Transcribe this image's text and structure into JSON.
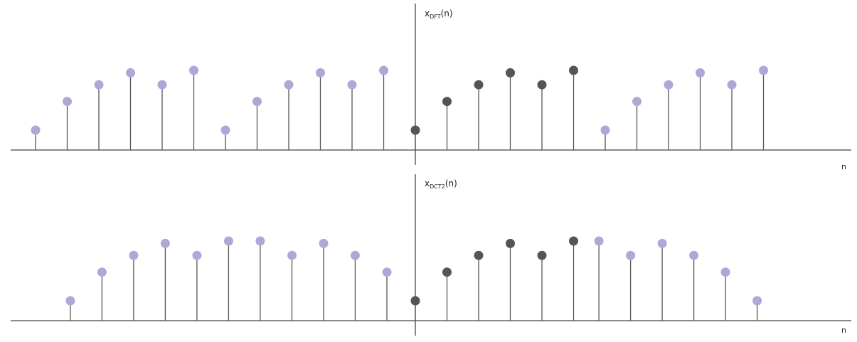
{
  "colors": {
    "axis": "#444444",
    "stem": "#555555",
    "periodic_marker": "#b3a6d6",
    "original_marker": "#555555",
    "text": "#222222"
  },
  "chart_data": [
    {
      "type": "stem",
      "ylabel": {
        "base": "x",
        "subscript": "DFT",
        "suffix": "(n)"
      },
      "xlabel": "n",
      "xlim": [
        -12.8,
        13.7
      ],
      "ylim": [
        0,
        1.0
      ],
      "grid": false,
      "series": [
        {
          "role": "periodic-extension",
          "x": [
            -12,
            -11,
            -10,
            -9,
            -8,
            -7,
            -6,
            -5,
            -4,
            -3,
            -2,
            -1,
            6,
            7,
            8,
            9,
            10,
            11
          ],
          "values": [
            0.25,
            0.61,
            0.82,
            0.97,
            0.82,
            1.0,
            0.25,
            0.61,
            0.82,
            0.97,
            0.82,
            1.0,
            0.25,
            0.61,
            0.82,
            0.97,
            0.82,
            1.0
          ]
        },
        {
          "role": "original",
          "x": [
            0,
            1,
            2,
            3,
            4,
            5
          ],
          "values": [
            0.25,
            0.61,
            0.82,
            0.97,
            0.82,
            1.0
          ]
        }
      ]
    },
    {
      "type": "stem",
      "ylabel": {
        "base": "x",
        "subscript": "DCT2",
        "suffix": "(n)"
      },
      "xlabel": "n",
      "xlim": [
        -12.8,
        13.7
      ],
      "ylim": [
        0,
        1.0
      ],
      "grid": false,
      "series": [
        {
          "role": "symmetric-extension",
          "x": [
            -10.9,
            -9.9,
            -8.9,
            -7.9,
            -6.9,
            -5.9,
            -4.9,
            -3.9,
            -2.9,
            -1.9,
            -0.9,
            5.8,
            6.8,
            7.8,
            8.8,
            9.8,
            10.8
          ],
          "values": [
            0.25,
            0.61,
            0.82,
            0.97,
            0.82,
            1.0,
            1.0,
            0.82,
            0.97,
            0.82,
            0.61,
            1.0,
            0.82,
            0.97,
            0.82,
            0.61,
            0.25
          ]
        },
        {
          "role": "original",
          "x": [
            0,
            1,
            2,
            3,
            4,
            5
          ],
          "values": [
            0.25,
            0.61,
            0.82,
            0.97,
            0.82,
            1.0
          ]
        }
      ]
    }
  ]
}
